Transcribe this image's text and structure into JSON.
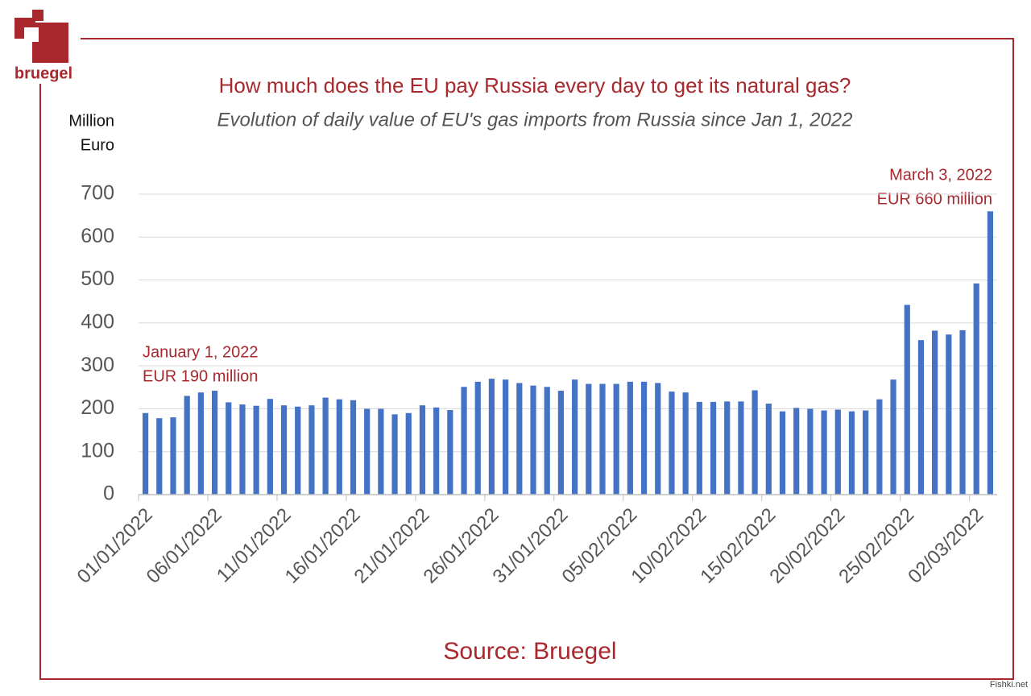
{
  "logo": "bruegel",
  "watermark": "Fishki.net",
  "chart_data": {
    "type": "bar",
    "title": "How much does the EU pay Russia every day to get its natural gas?",
    "subtitle": "Evolution of daily value of EU's gas imports from Russia since Jan 1, 2022",
    "y_label": [
      "Million",
      "Euro"
    ],
    "source": "Source: Bruegel",
    "annotations": [
      {
        "lines": [
          "January 1, 2022",
          "EUR 190 million"
        ]
      },
      {
        "lines": [
          "March 3, 2022",
          "EUR 660 million"
        ]
      }
    ],
    "color": "#4472c4",
    "categories": [
      "01/01/2022",
      null,
      null,
      null,
      null,
      "06/01/2022",
      null,
      null,
      null,
      null,
      "11/01/2022",
      null,
      null,
      null,
      null,
      "16/01/2022",
      null,
      null,
      null,
      null,
      "21/01/2022",
      null,
      null,
      null,
      null,
      "26/01/2022",
      null,
      null,
      null,
      null,
      "31/01/2022",
      null,
      null,
      null,
      null,
      "05/02/2022",
      null,
      null,
      null,
      null,
      "10/02/2022",
      null,
      null,
      null,
      null,
      "15/02/2022",
      null,
      null,
      null,
      null,
      "20/02/2022",
      null,
      null,
      null,
      null,
      "25/02/2022",
      null,
      null,
      null,
      null,
      "02/03/2022",
      null
    ],
    "values": [
      190,
      178,
      180,
      230,
      238,
      242,
      215,
      210,
      207,
      223,
      208,
      205,
      208,
      226,
      222,
      220,
      200,
      200,
      187,
      190,
      208,
      203,
      197,
      251,
      263,
      270,
      268,
      260,
      254,
      251,
      242,
      268,
      258,
      258,
      258,
      263,
      263,
      260,
      240,
      238,
      216,
      216,
      217,
      217,
      243,
      212,
      194,
      202,
      200,
      196,
      198,
      194,
      196,
      222,
      268,
      442,
      360,
      382,
      373,
      383,
      492,
      660
    ],
    "ylim": [
      0,
      700
    ],
    "yticks": [
      0,
      100,
      200,
      300,
      400,
      500,
      600,
      700
    ],
    "grid": true
  }
}
